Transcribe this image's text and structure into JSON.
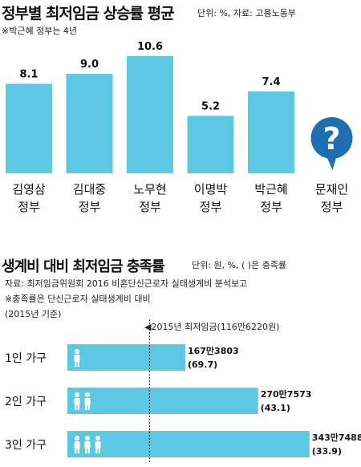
{
  "chart_data": [
    {
      "type": "bar",
      "title": "정부별 최저임금 상승률 평균",
      "unit_source": "단위: %, 자료: 고용노동부",
      "note": "※박근혜 정부는 4년",
      "categories": [
        "김영삼 정부",
        "김대중 정부",
        "노무현 정부",
        "이명박 정부",
        "박근혜 정부",
        "문재인 정부"
      ],
      "category_lines": [
        [
          "김영삼",
          "정부"
        ],
        [
          "김대중",
          "정부"
        ],
        [
          "노무현",
          "정부"
        ],
        [
          "이명박",
          "정부"
        ],
        [
          "박근혜",
          "정부"
        ],
        [
          "문재인",
          "정부"
        ]
      ],
      "values": [
        8.1,
        9.0,
        10.6,
        5.2,
        7.4,
        null
      ],
      "value_labels": [
        "8.1",
        "9.0",
        "10.6",
        "5.2",
        "7.4",
        ""
      ],
      "unknown_marker": "?",
      "ylim": [
        0,
        10.6
      ],
      "bar_color": "#5cc8e4",
      "marker_color": "#1f6eb2"
    },
    {
      "type": "bar",
      "orientation": "horizontal",
      "title": "생계비 대비 최저임금 충족률",
      "unit": "단위: 원, %, (      )은 충족률",
      "source": "자료: 최저임금위원회 2016 비혼단신근로자 실태생계비 분석보고",
      "note": "※충족률은 단신근로자 실태생계비 대비",
      "base": "(2015년 기준)",
      "reference_label": "◀2015년 최저임금(116만6220원)",
      "reference_value": 1166220,
      "categories": [
        "1인 가구",
        "2인 가구",
        "3인 가구"
      ],
      "persons": [
        1,
        2,
        3
      ],
      "values": [
        1673803,
        2707573,
        3437488
      ],
      "value_labels": [
        "167만3803",
        "270만7573",
        "343만7488"
      ],
      "rate_labels": [
        "(69.7)",
        "(43.1)",
        "(33.9)"
      ],
      "rates": [
        69.7,
        43.1,
        33.9
      ],
      "bar_color": "#5cc8e4",
      "person_color": "#ffffff"
    }
  ]
}
